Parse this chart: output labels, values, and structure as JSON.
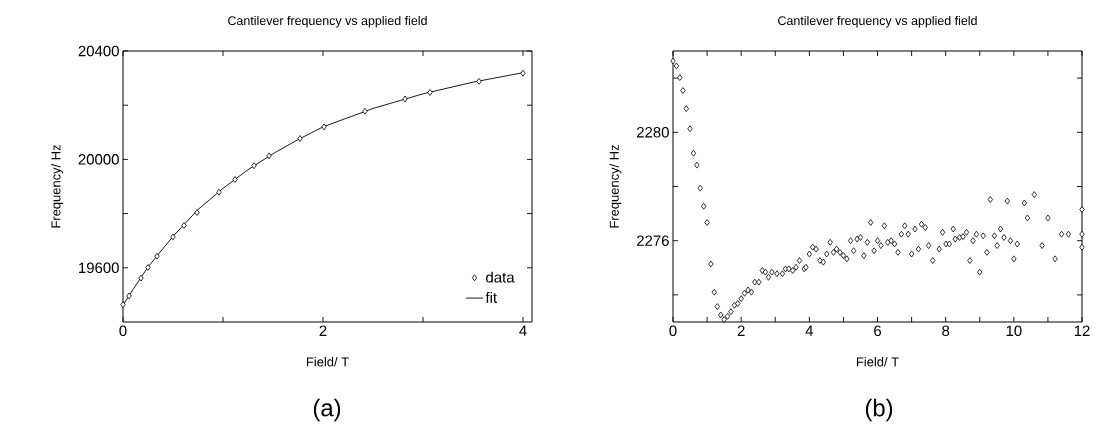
{
  "chart_data": [
    {
      "type": "scatter",
      "title": "Cantilever frequency vs applied field",
      "xlabel": "Field/ T",
      "ylabel": "Frequency/  Hz",
      "annotations": [
        "(a)"
      ],
      "xlim": [
        0,
        4.09
      ],
      "ylim": [
        19400,
        20400
      ],
      "xticks": [
        0,
        {
          "value": 1,
          "label": null
        },
        2,
        {
          "value": 3,
          "label": null
        },
        4
      ],
      "yticks": [
        19600,
        {
          "value": 19800,
          "label": null
        },
        20000,
        {
          "value": 20200,
          "label": null
        },
        20400
      ],
      "legend": "bottom right",
      "series": [
        {
          "name": "data",
          "marker": "diamond",
          "color": "#000000",
          "x": [
            0,
            0.06,
            0.18,
            0.25,
            0.34,
            0.5,
            0.61,
            0.74,
            0.96,
            1.12,
            1.31,
            1.46,
            1.77,
            2.01,
            2.42,
            2.82,
            3.07,
            3.56,
            4.0
          ],
          "values": [
            19464,
            19496,
            19562,
            19601,
            19643,
            19714,
            19756,
            19804,
            19879,
            19926,
            19977,
            20013,
            20077,
            20120,
            20178,
            20223,
            20247,
            20288,
            20318
          ]
        },
        {
          "name": "fit",
          "type": "line",
          "marker": "none",
          "color": "#000000",
          "x": [
            0,
            0.1,
            0.25,
            0.5,
            0.75,
            1,
            1.25,
            1.5,
            1.75,
            2,
            2.5,
            3,
            3.5,
            4
          ],
          "values": [
            19462,
            19520,
            19603,
            19716,
            19815,
            19893,
            19962,
            20021,
            20073,
            20120,
            20188,
            20242,
            20285,
            20320
          ]
        }
      ]
    },
    {
      "type": "scatter",
      "title": "Cantilever frequency vs applied field",
      "xlabel": "Field/ T",
      "ylabel": "Frequency/  Hz",
      "annotations": [
        "(b)"
      ],
      "xlim": [
        0,
        12
      ],
      "ylim": [
        2273,
        2283
      ],
      "xticks": [
        0,
        {
          "value": 1,
          "label": null
        },
        2,
        {
          "value": 3,
          "label": null
        },
        4,
        {
          "value": 5,
          "label": null
        },
        6,
        {
          "value": 7,
          "label": null
        },
        8,
        {
          "value": 9,
          "label": null
        },
        10,
        {
          "value": 11,
          "label": null
        },
        12
      ],
      "yticks": [
        {
          "value": 2274,
          "label": null
        },
        2276,
        {
          "value": 2278,
          "label": null
        },
        2280,
        {
          "value": 2282,
          "label": null
        }
      ],
      "marker": "diamond",
      "series": [
        {
          "color": "#000000",
          "x": [
            0,
            0.1,
            0.2,
            0.29,
            0.39,
            0.5,
            0.6,
            0.7,
            0.8,
            0.9,
            1.0,
            1.11,
            1.21,
            1.3,
            1.4,
            1.5,
            1.6,
            1.7,
            1.8,
            1.9,
            2.0,
            2.1,
            2.2,
            2.3,
            2.4,
            2.52,
            2.62,
            2.71,
            2.8,
            2.9,
            3.05,
            3.21,
            3.3,
            3.4,
            3.51,
            3.61,
            3.71,
            3.85,
            3.9,
            4.0,
            4.1,
            4.2,
            4.31,
            4.41,
            4.51,
            4.61,
            4.71,
            4.8,
            4.9,
            5.0,
            5.1,
            5.21,
            5.3,
            5.4,
            5.5,
            5.6,
            5.7,
            5.8,
            5.9,
            6.0,
            6.1,
            6.2,
            6.3,
            6.4,
            6.5,
            6.6,
            6.7,
            6.8,
            6.9,
            7.0,
            7.1,
            7.2,
            7.29,
            7.4,
            7.5,
            7.62,
            7.81,
            7.91,
            8.01,
            8.11,
            8.22,
            8.28,
            8.41,
            8.51,
            8.61,
            8.71,
            8.8,
            8.9,
            9.0,
            9.1,
            9.21,
            9.31,
            9.43,
            9.51,
            9.61,
            9.71,
            9.81,
            9.9,
            10.0,
            10.1,
            10.31,
            10.4,
            10.6,
            10.83,
            11.0,
            11.21,
            11.4,
            11.6,
            12.0,
            12.0,
            12.0
          ],
          "values": [
            2282.63,
            2282.45,
            2282.02,
            2281.54,
            2280.87,
            2280.13,
            2279.23,
            2278.79,
            2277.94,
            2277.27,
            2276.67,
            2275.14,
            2274.1,
            2273.57,
            2273.26,
            2273.09,
            2273.21,
            2273.38,
            2273.62,
            2273.68,
            2273.86,
            2274.06,
            2274.18,
            2274.1,
            2274.47,
            2274.47,
            2274.9,
            2274.84,
            2274.65,
            2274.84,
            2274.78,
            2274.78,
            2274.96,
            2274.96,
            2274.9,
            2275.02,
            2275.27,
            2274.96,
            2275.02,
            2275.51,
            2275.76,
            2275.69,
            2275.27,
            2275.21,
            2275.51,
            2275.94,
            2275.57,
            2275.69,
            2275.57,
            2275.45,
            2275.33,
            2276.0,
            2275.63,
            2276.06,
            2276.12,
            2275.45,
            2275.94,
            2276.67,
            2275.63,
            2276.0,
            2275.82,
            2276.55,
            2275.94,
            2276.0,
            2275.88,
            2275.57,
            2276.24,
            2276.55,
            2276.24,
            2275.51,
            2276.43,
            2275.69,
            2276.61,
            2276.49,
            2275.82,
            2275.27,
            2275.69,
            2276.31,
            2275.88,
            2275.88,
            2276.43,
            2276.06,
            2276.12,
            2276.15,
            2276.31,
            2275.27,
            2276.0,
            2276.24,
            2274.84,
            2276.18,
            2275.57,
            2277.52,
            2276.18,
            2275.82,
            2276.43,
            2276.12,
            2277.46,
            2276.0,
            2275.33,
            2275.88,
            2277.39,
            2276.84,
            2277.7,
            2275.82,
            2276.84,
            2275.33,
            2276.24,
            2276.24,
            2277.15,
            2276.24,
            2275.76
          ]
        }
      ]
    }
  ]
}
